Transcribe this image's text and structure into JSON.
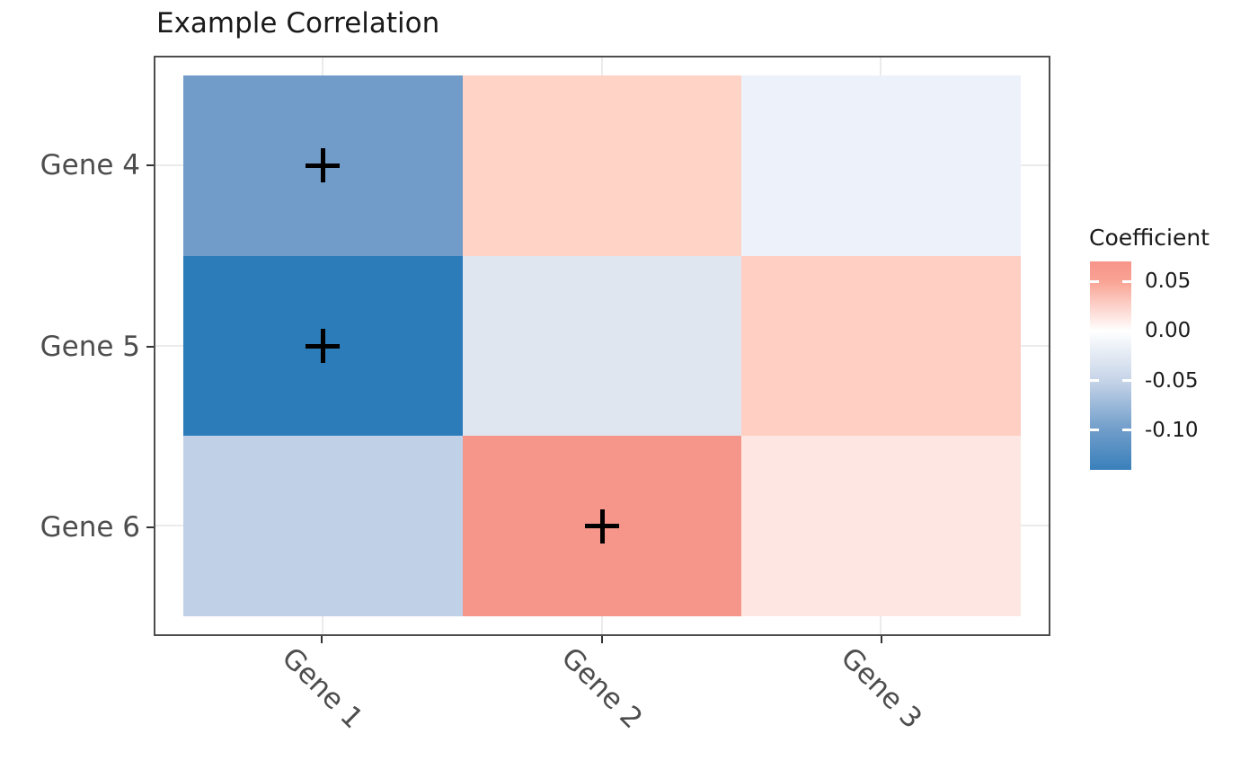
{
  "title": "Example Correlation",
  "chart_data": {
    "type": "heatmap",
    "title": "Example Correlation",
    "x_categories": [
      "Gene 1",
      "Gene 2",
      "Gene 3"
    ],
    "y_categories": [
      "Gene 4",
      "Gene 5",
      "Gene 6"
    ],
    "values": [
      [
        -0.1,
        0.03,
        -0.01
      ],
      [
        -0.13,
        -0.02,
        0.03
      ],
      [
        -0.045,
        0.065,
        0.015
      ]
    ],
    "cell_colors": [
      [
        "#719cc9",
        "#ffd3c6",
        "#edf1f9"
      ],
      [
        "#2b7cb8",
        "#e0e6f0",
        "#fecfc2"
      ],
      [
        "#c0d0e6",
        "#f6968a",
        "#fee7e2"
      ]
    ],
    "significance_symbol": "+",
    "significance_marks": [
      {
        "x": "Gene 1",
        "y": "Gene 4"
      },
      {
        "x": "Gene 1",
        "y": "Gene 5"
      },
      {
        "x": "Gene 2",
        "y": "Gene 6"
      }
    ],
    "legend": {
      "title": "Coefficient",
      "tick_labels": [
        "0.05",
        "0.00",
        "-0.05",
        "-0.10"
      ],
      "tick_values": [
        0.05,
        0.0,
        -0.05,
        -0.1
      ],
      "gradient": {
        "top_value": 0.07,
        "bottom_value": -0.14,
        "stops": [
          {
            "value": 0.07,
            "color": "#f8948a"
          },
          {
            "value": 0.05,
            "color": "#f9a394"
          },
          {
            "value": 0.0,
            "color": "#ffffff"
          },
          {
            "value": -0.05,
            "color": "#c6d4e8"
          },
          {
            "value": -0.1,
            "color": "#6f9dca"
          },
          {
            "value": -0.14,
            "color": "#3a80bb"
          }
        ]
      }
    },
    "grid": "on",
    "legend_position": "right",
    "panel_border_color": "#4d4d4d",
    "axis_text_color": "#4d4d4d"
  }
}
